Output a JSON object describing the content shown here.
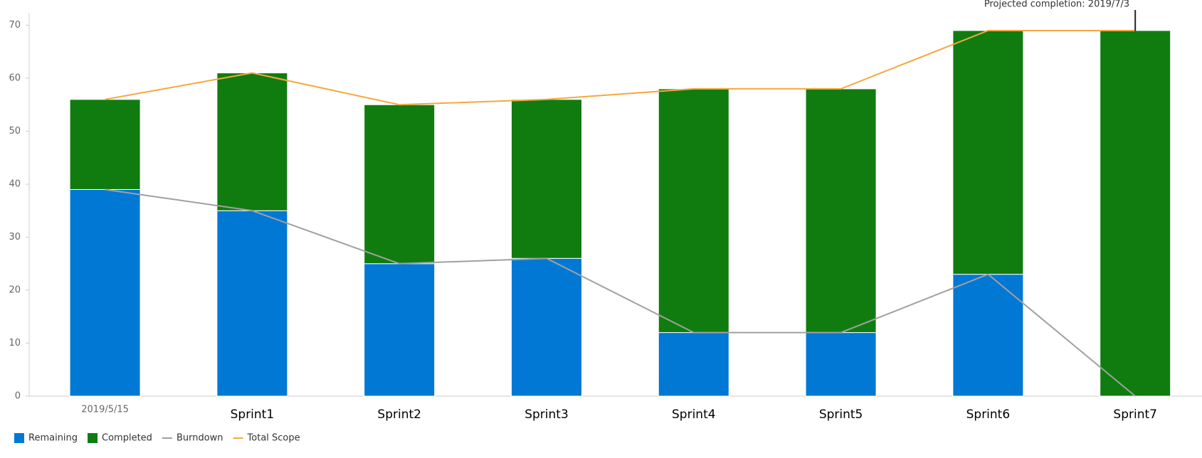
{
  "chart_data": {
    "type": "stacked-bar-line",
    "annotation": "Projected completion: 2019/7/3",
    "categories": [
      "2019/5/15",
      "Sprint1",
      "Sprint2",
      "Sprint3",
      "Sprint4",
      "Sprint5",
      "Sprint6",
      "Sprint7"
    ],
    "series": [
      {
        "name": "Remaining",
        "kind": "bar",
        "color": "#0078d4",
        "values": [
          39,
          35,
          25,
          26,
          12,
          12,
          23,
          0
        ]
      },
      {
        "name": "Completed",
        "kind": "bar",
        "color": "#107c10",
        "values": [
          17,
          26,
          30,
          30,
          46,
          46,
          46,
          69
        ]
      },
      {
        "name": "Burndown",
        "kind": "line",
        "color": "#a0a0a0",
        "values": [
          39,
          35,
          25,
          26,
          12,
          12,
          23,
          0
        ]
      },
      {
        "name": "Total Scope",
        "kind": "line",
        "color": "#f7a73c",
        "values": [
          56,
          61,
          55,
          56,
          58,
          58,
          69,
          69
        ]
      }
    ],
    "ylim": [
      0,
      70
    ],
    "yticks": [
      0,
      10,
      20,
      30,
      40,
      50,
      60,
      70
    ]
  }
}
